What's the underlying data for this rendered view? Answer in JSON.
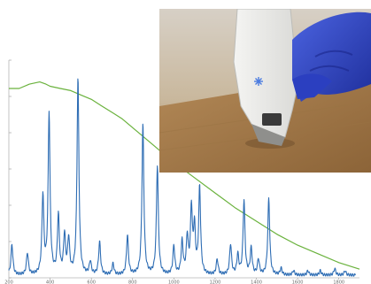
{
  "chart_data": {
    "type": "line",
    "title": "",
    "xlabel": "",
    "ylabel": "",
    "xlim": [
      200,
      1900
    ],
    "ylim": [
      0,
      1
    ],
    "x_ticks": [
      "200",
      "400",
      "600",
      "800",
      "1000",
      "1200",
      "1400",
      "1600",
      "1800"
    ],
    "grid": false,
    "legend": "none",
    "series": [
      {
        "color": "#6ab23d",
        "x": [
          200,
          250,
          300,
          350,
          380,
          400,
          450,
          500,
          550,
          600,
          650,
          700,
          750,
          800,
          850,
          900,
          950,
          1000,
          1100,
          1200,
          1300,
          1400,
          1500,
          1600,
          1700,
          1800,
          1900
        ],
        "y": [
          0.87,
          0.87,
          0.89,
          0.9,
          0.89,
          0.88,
          0.87,
          0.86,
          0.84,
          0.82,
          0.79,
          0.76,
          0.73,
          0.69,
          0.65,
          0.61,
          0.57,
          0.53,
          0.46,
          0.39,
          0.32,
          0.26,
          0.2,
          0.15,
          0.11,
          0.07,
          0.04
        ]
      },
      {
        "color": "#2e6db4",
        "peaks": [
          {
            "x": 215,
            "y": 0.14
          },
          {
            "x": 290,
            "y": 0.1
          },
          {
            "x": 365,
            "y": 0.36
          },
          {
            "x": 395,
            "y": 0.74
          },
          {
            "x": 440,
            "y": 0.27
          },
          {
            "x": 470,
            "y": 0.18
          },
          {
            "x": 490,
            "y": 0.16
          },
          {
            "x": 535,
            "y": 0.9
          },
          {
            "x": 595,
            "y": 0.06
          },
          {
            "x": 640,
            "y": 0.15
          },
          {
            "x": 705,
            "y": 0.05
          },
          {
            "x": 775,
            "y": 0.18
          },
          {
            "x": 850,
            "y": 0.69
          },
          {
            "x": 920,
            "y": 0.5
          },
          {
            "x": 1000,
            "y": 0.13
          },
          {
            "x": 1040,
            "y": 0.15
          },
          {
            "x": 1065,
            "y": 0.17
          },
          {
            "x": 1085,
            "y": 0.3
          },
          {
            "x": 1100,
            "y": 0.21
          },
          {
            "x": 1125,
            "y": 0.4
          },
          {
            "x": 1210,
            "y": 0.07
          },
          {
            "x": 1275,
            "y": 0.14
          },
          {
            "x": 1310,
            "y": 0.09
          },
          {
            "x": 1340,
            "y": 0.34
          },
          {
            "x": 1375,
            "y": 0.12
          },
          {
            "x": 1410,
            "y": 0.07
          },
          {
            "x": 1460,
            "y": 0.35
          },
          {
            "x": 1520,
            "y": 0.03
          },
          {
            "x": 1580,
            "y": 0.02
          },
          {
            "x": 1650,
            "y": 0.02
          },
          {
            "x": 1710,
            "y": 0.02
          },
          {
            "x": 1780,
            "y": 0.03
          },
          {
            "x": 1830,
            "y": 0.02
          }
        ]
      }
    ]
  },
  "photo": {
    "subject": "handheld-spectrometer",
    "accent_color": "#2a3fc4"
  }
}
